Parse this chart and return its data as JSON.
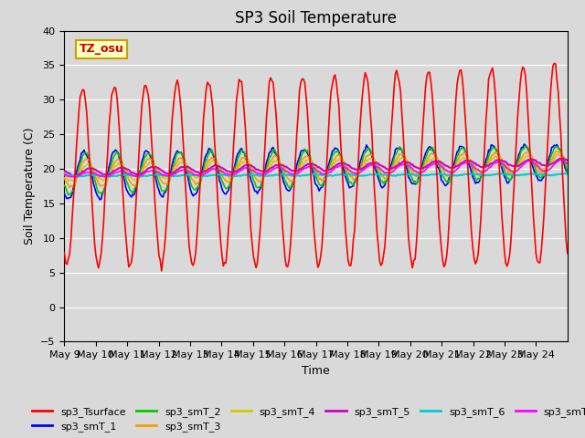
{
  "title": "SP3 Soil Temperature",
  "ylabel": "Soil Temperature (C)",
  "xlabel": "Time",
  "ylim": [
    -5,
    40
  ],
  "plot_bg_color": "#d9d9d9",
  "annotation_text": "TZ_osu",
  "annotation_bg": "#ffffc0",
  "annotation_border": "#c8a000",
  "annotation_text_color": "#cc0000",
  "x_tick_labels": [
    "May 9",
    "May 10",
    "May 11",
    "May 12",
    "May 13",
    "May 14",
    "May 15",
    "May 16",
    "May 17",
    "May 18",
    "May 19",
    "May 20",
    "May 21",
    "May 22",
    "May 23",
    "May 24"
  ],
  "series_colors": {
    "sp3_Tsurface": "#ff0000",
    "sp3_smT_1": "#0000ff",
    "sp3_smT_2": "#00cc00",
    "sp3_smT_3": "#ff9900",
    "sp3_smT_4": "#cccc00",
    "sp3_smT_5": "#cc00cc",
    "sp3_smT_6": "#00cccc",
    "sp3_smT_7": "#ff00ff"
  },
  "n_days": 16
}
